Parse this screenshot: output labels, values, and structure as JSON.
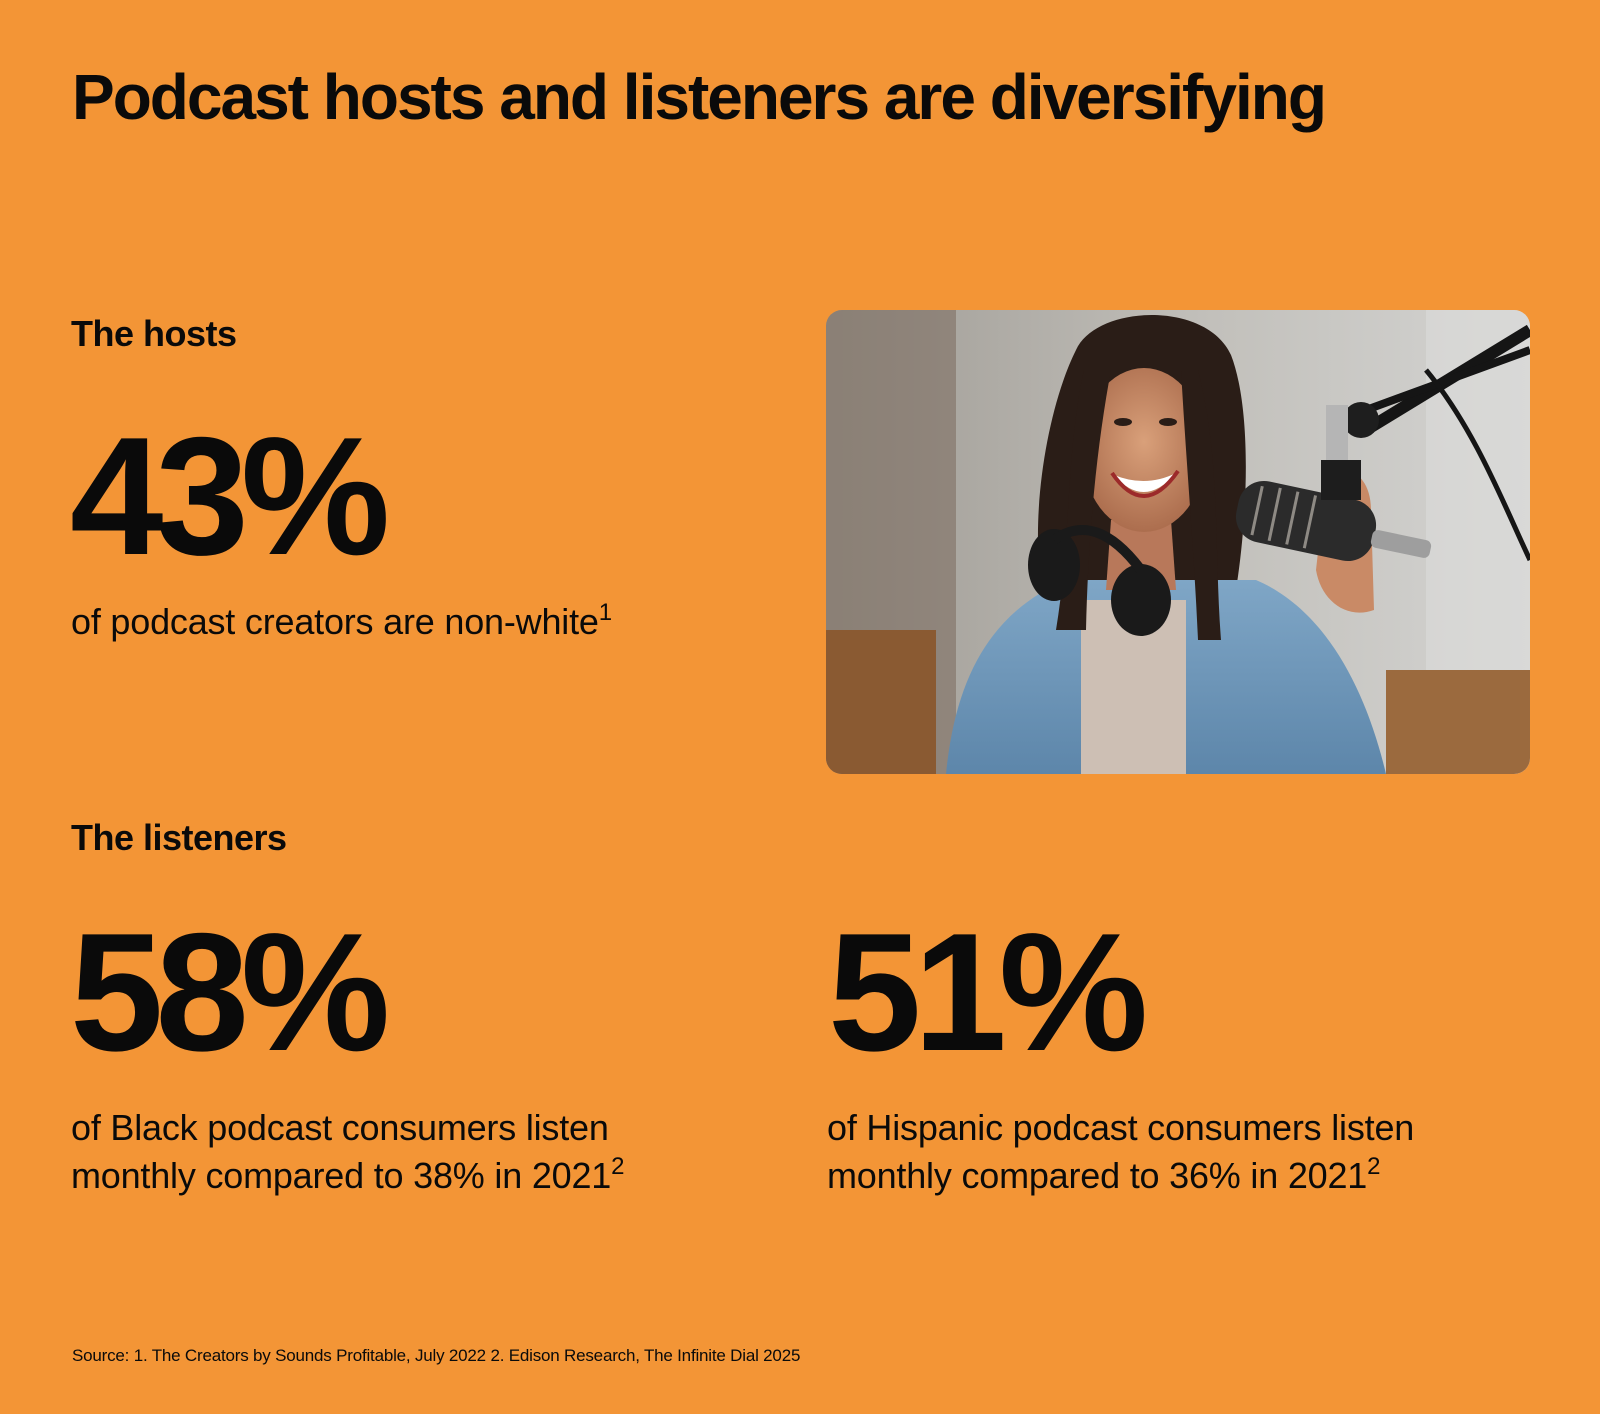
{
  "title": "Podcast hosts and listeners are diversifying",
  "hosts": {
    "label": "The hosts",
    "stat": "43%",
    "desc": "of podcast creators are non-white",
    "note": "1"
  },
  "listeners": {
    "label": "The listeners",
    "black": {
      "stat": "58%",
      "line1": "of Black podcast consumers listen",
      "line2": "monthly compared to 38% in 2021",
      "note": "2"
    },
    "hispanic": {
      "stat": "51%",
      "line1": "of Hispanic podcast consumers listen",
      "line2": "monthly compared to 36% in 2021",
      "note": "2"
    }
  },
  "source": "Source: 1. The Creators by Sounds Profitable, July 2022 2. Edison Research, The Infinite Dial 2025",
  "colors": {
    "background": "#F39536",
    "text": "#0a0a0a"
  },
  "photo_icon": "podcast-host-photo"
}
